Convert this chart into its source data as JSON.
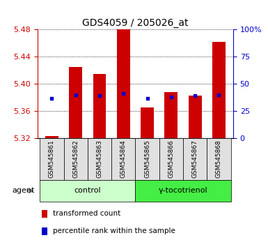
{
  "title": "GDS4059 / 205026_at",
  "samples": [
    "GSM545861",
    "GSM545862",
    "GSM545863",
    "GSM545864",
    "GSM545865",
    "GSM545866",
    "GSM545867",
    "GSM545868"
  ],
  "red_values": [
    5.323,
    5.425,
    5.415,
    5.487,
    5.365,
    5.388,
    5.383,
    5.462
  ],
  "blue_values": [
    37,
    40,
    39,
    41,
    37,
    38,
    39,
    40
  ],
  "ylim": [
    5.32,
    5.48
  ],
  "yticks": [
    5.32,
    5.36,
    5.4,
    5.44,
    5.48
  ],
  "right_yticks": [
    0,
    25,
    50,
    75,
    100
  ],
  "right_ylim": [
    0,
    100
  ],
  "groups": [
    {
      "label": "control",
      "indices": [
        0,
        1,
        2,
        3
      ],
      "color": "#ccffcc"
    },
    {
      "label": "γ-tocotrienol",
      "indices": [
        4,
        5,
        6,
        7
      ],
      "color": "#44ee44"
    }
  ],
  "bar_color": "#cc0000",
  "dot_color": "#0000cc",
  "bar_width": 0.55,
  "left_tick_color": "#cc0000",
  "right_tick_color": "#0000cc",
  "grid_color": "#000000",
  "sample_box_color": "#e0e0e0",
  "agent_label": "agent",
  "legend_items": [
    "transformed count",
    "percentile rank within the sample"
  ]
}
